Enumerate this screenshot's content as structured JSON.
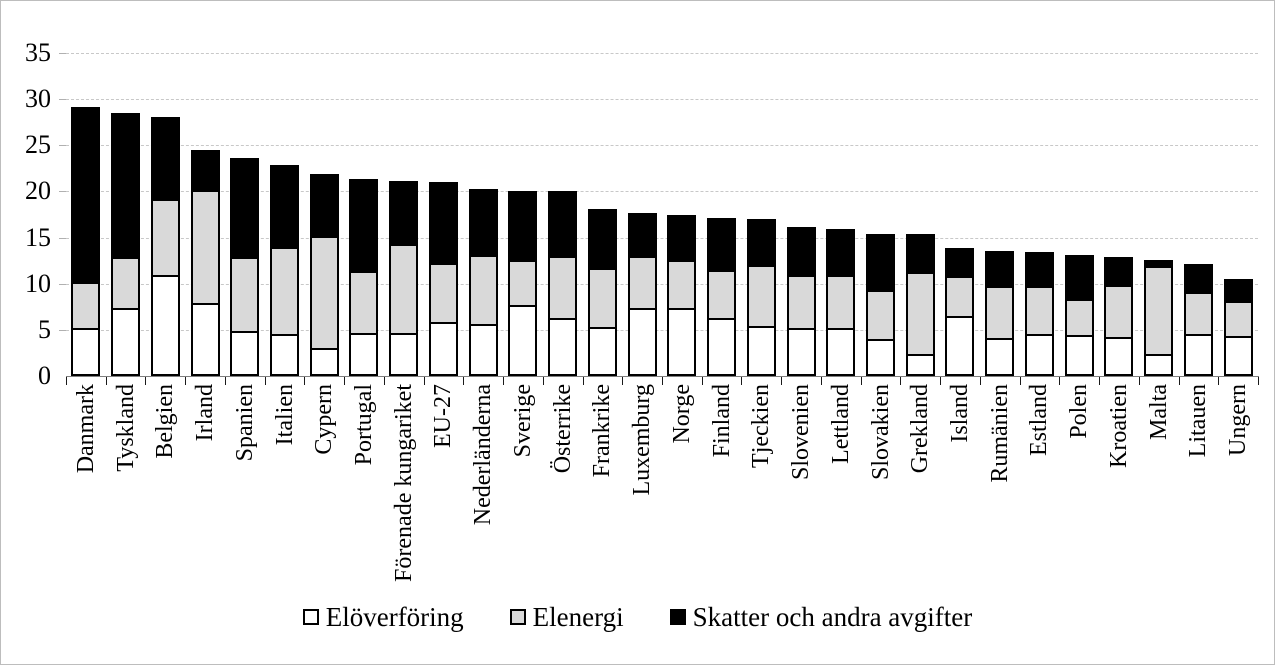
{
  "chart_data": {
    "type": "bar",
    "subtype": "stacked-vertical",
    "title": "",
    "xlabel": "",
    "ylabel": "",
    "ylim": [
      0,
      35
    ],
    "yticks": [
      0,
      5,
      10,
      15,
      20,
      25,
      30,
      35
    ],
    "grid": true,
    "legend_position": "bottom",
    "categories": [
      "Danmark",
      "Tyskland",
      "Belgien",
      "Irland",
      "Spanien",
      "Italien",
      "Cypern",
      "Portugal",
      "Förenade kungariket",
      "EU-27",
      "Nederländerna",
      "Sverige",
      "Österrike",
      "Frankrike",
      "Luxemburg",
      "Norge",
      "Finland",
      "Tjeckien",
      "Slovenien",
      "Lettland",
      "Slovakien",
      "Grekland",
      "Island",
      "Rumänien",
      "Estland",
      "Polen",
      "Kroatien",
      "Malta",
      "Litauen",
      "Ungern"
    ],
    "series": [
      {
        "name": "Elöverföring",
        "color": "#ffffff",
        "values": [
          5.2,
          7.4,
          10.9,
          7.9,
          4.9,
          4.6,
          3.0,
          4.7,
          4.7,
          5.8,
          5.6,
          7.7,
          6.3,
          5.3,
          7.4,
          7.4,
          6.3,
          5.4,
          5.2,
          5.2,
          4.0,
          2.4,
          6.5,
          4.1,
          4.5,
          4.4,
          4.2,
          2.4,
          4.5,
          4.3
        ]
      },
      {
        "name": "Elenergi",
        "color": "#d9d9d9",
        "values": [
          5.2,
          5.7,
          8.5,
          12.5,
          8.2,
          9.6,
          12.4,
          6.9,
          9.8,
          6.7,
          7.7,
          5.1,
          6.9,
          6.6,
          5.8,
          5.4,
          5.4,
          6.8,
          6.0,
          6.0,
          5.5,
          9.1,
          4.6,
          5.9,
          5.5,
          4.2,
          5.9,
          9.7,
          4.8,
          4.1
        ]
      },
      {
        "name": "Skatter och andra avgifter",
        "color": "#000000",
        "values": [
          19.2,
          15.8,
          9.1,
          4.5,
          11.0,
          9.1,
          6.9,
          10.2,
          7.1,
          9.0,
          7.4,
          7.7,
          7.3,
          6.6,
          4.9,
          5.1,
          5.9,
          5.3,
          5.4,
          5.2,
          6.3,
          4.3,
          3.2,
          4.0,
          3.9,
          5.0,
          3.2,
          0.9,
          3.3,
          2.6
        ]
      }
    ],
    "totals": [
      29.6,
      28.9,
      28.5,
      24.9,
      24.1,
      23.3,
      22.3,
      21.8,
      21.6,
      21.5,
      20.7,
      20.5,
      20.5,
      18.5,
      18.1,
      17.9,
      17.6,
      17.5,
      16.6,
      16.4,
      15.8,
      15.8,
      14.3,
      14.0,
      13.9,
      13.6,
      13.3,
      13.0,
      12.6,
      11.0
    ]
  },
  "colors": {
    "background": "#ffffff",
    "frame_border": "#bdbdbd",
    "gridline": "#c8c8c8",
    "axis_line": "#7f7f7f",
    "bar_outline": "#000000",
    "text": "#000000"
  }
}
